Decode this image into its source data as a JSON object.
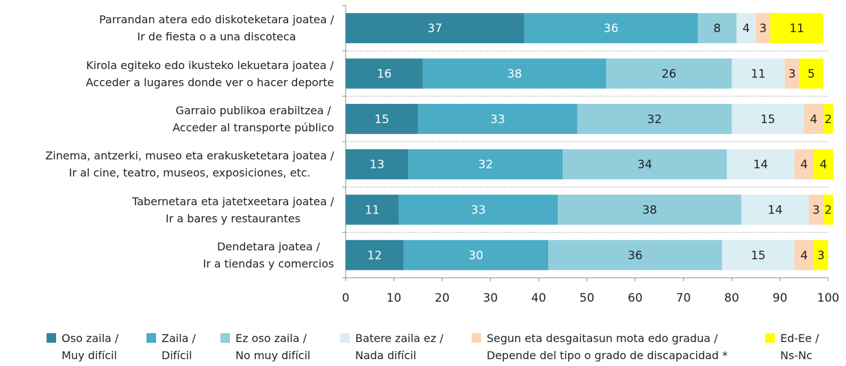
{
  "chart_data": {
    "type": "bar",
    "orientation": "horizontal",
    "stacked": true,
    "categories": [
      "Parrandan atera edo diskoteketara joatea /\nIr de fiesta o a una discoteca",
      "Kirola egiteko edo ikusteko lekuetara joatea /\nAcceder a lugares donde ver o hacer deporte",
      "Garraio publikoa erabiltzea /\nAcceder al transporte público",
      "Zinema, antzerki, museo eta erakusketetara joatea /\nIr al cine, teatro, museos, exposiciones, etc.",
      "Tabernetara eta jatetxeetara joatea /\nIr a bares y restaurantes",
      "Dendetara joatea /\nIr a tiendas y comercios"
    ],
    "series": [
      {
        "name": "Oso zaila /\nMuy difícil",
        "color": "#31859c",
        "values": [
          37,
          16,
          15,
          13,
          11,
          12
        ]
      },
      {
        "name": "Zaila /\nDifícil",
        "color": "#4bacc6",
        "values": [
          36,
          38,
          33,
          32,
          33,
          30
        ]
      },
      {
        "name": "Ez oso zaila /\nNo muy difícil",
        "color": "#92cddc",
        "values": [
          8,
          26,
          32,
          34,
          38,
          36
        ]
      },
      {
        "name": "Batere zaila ez /\nNada difícil",
        "color": "#daeef3",
        "values": [
          4,
          11,
          15,
          14,
          14,
          15
        ]
      },
      {
        "name": "Segun eta desgaitasun mota edo gradua /\nDepende del tipo o grado de discapacidad *",
        "color": "#fbd5b5",
        "values": [
          3,
          3,
          4,
          4,
          3,
          4
        ]
      },
      {
        "name": "Ed-Ee /\nNs-Nc",
        "color": "#ffff00",
        "values": [
          11,
          5,
          2,
          4,
          2,
          3
        ]
      }
    ],
    "xlim": [
      0,
      100
    ],
    "xticks": [
      0,
      10,
      20,
      30,
      40,
      50,
      60,
      70,
      80,
      90,
      100
    ],
    "legend": "bottom"
  }
}
